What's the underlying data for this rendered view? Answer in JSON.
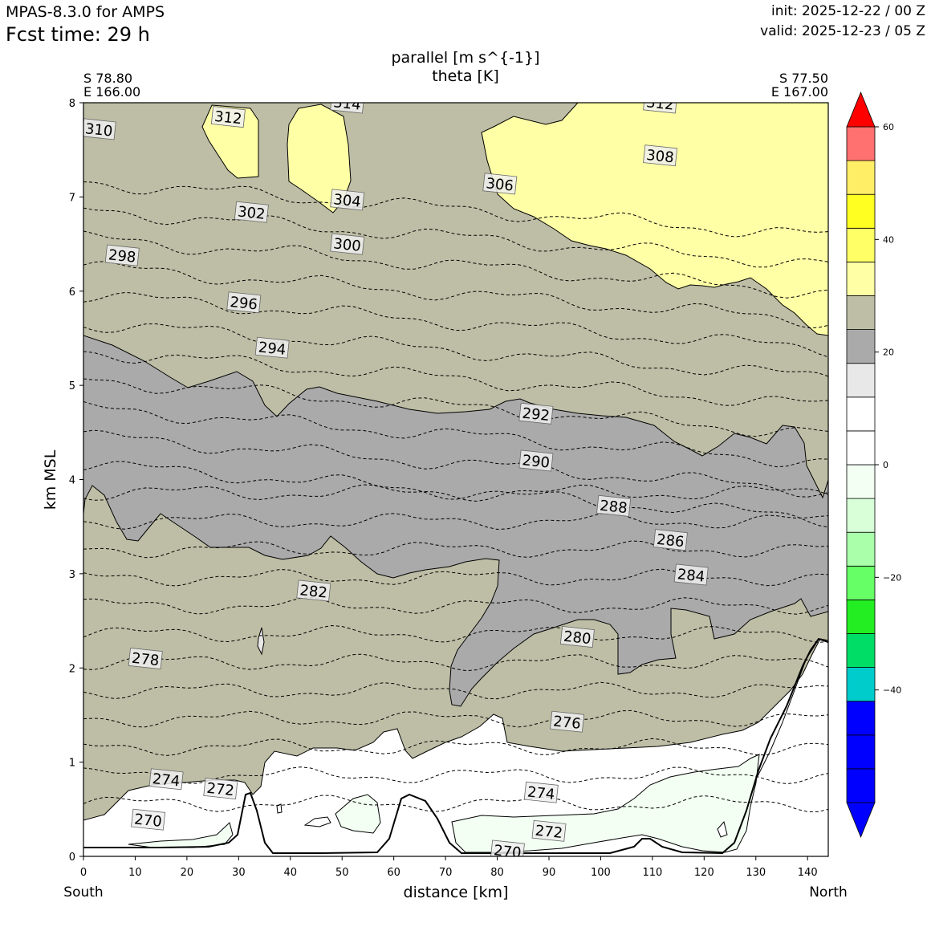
{
  "header": {
    "model": "MPAS-8.3.0 for AMPS",
    "fcst_time": "Fcst time:   29 h",
    "init": "init: 2025-12-22 / 00 Z",
    "valid": "valid: 2025-12-23 / 05 Z"
  },
  "chart_data": {
    "type": "heatmap",
    "title_line1": "parallel [m s^{-1}]",
    "title_line2": "theta [K]",
    "xlabel": "distance [km]",
    "ylabel": "km MSL",
    "xlim": [
      0,
      144
    ],
    "ylim": [
      0,
      8
    ],
    "x_ticks": [
      0,
      10,
      20,
      30,
      40,
      50,
      60,
      70,
      80,
      90,
      100,
      110,
      120,
      130,
      140
    ],
    "y_ticks": [
      0,
      1,
      2,
      3,
      4,
      5,
      6,
      7,
      8
    ],
    "endpoints": {
      "left": {
        "lat": "S 78.80",
        "lon": "E 166.00",
        "name": "South"
      },
      "right": {
        "lat": "S 77.50",
        "lon": "E 167.00",
        "name": "North"
      }
    },
    "colorbar": {
      "boundaries": [
        -60,
        -54,
        -48,
        -42,
        -36,
        -30,
        -24,
        -18,
        -12,
        -6,
        0,
        6,
        12,
        18,
        24,
        30,
        36,
        42,
        48,
        54,
        60
      ],
      "colors": [
        "#0000ff",
        "#0000ff",
        "#0000ff",
        "#00cccc",
        "#00dd66",
        "#22ee22",
        "#66ff66",
        "#aaffaa",
        "#d8ffd8",
        "#f2fff2",
        "#ffffff",
        "#ffffff",
        "#e8e8e8",
        "#aaaaaa",
        "#bebea6",
        "#ffffa6",
        "#ffff66",
        "#ffff22",
        "#ffee66",
        "#ff7070",
        "#ff0000"
      ],
      "over_color": "#ff0000",
      "under_color": "#0000ff",
      "tick_values": [
        60,
        40,
        20,
        0,
        -20,
        -40
      ],
      "tick_labels": [
        "60",
        "40",
        "20",
        "0",
        "−20",
        "−40"
      ]
    },
    "wind_regions": [
      {
        "name": "6-12",
        "color": "#ffffff"
      },
      {
        "name": "12-18",
        "color": "#e8e8e8"
      },
      {
        "name": "18-24",
        "color": "#aaaaaa"
      },
      {
        "name": "24-30",
        "color": "#bebea6"
      },
      {
        "name": "30-36",
        "color": "#ffffa6"
      },
      {
        "name": "-6-0",
        "color": "#f2fff2"
      }
    ],
    "theta_levels": [
      270,
      272,
      274,
      276,
      278,
      280,
      282,
      284,
      286,
      288,
      290,
      292,
      294,
      296,
      298,
      300,
      302,
      304,
      306,
      308,
      310,
      312,
      314
    ],
    "theta_labels": [
      {
        "text": "314",
        "x": 51,
        "y": 8.0
      },
      {
        "text": "312",
        "x": 28,
        "y": 7.85
      },
      {
        "text": "312",
        "x": 111.5,
        "y": 8.0
      },
      {
        "text": "310",
        "x": 3,
        "y": 7.72
      },
      {
        "text": "308",
        "x": 111.5,
        "y": 7.44
      },
      {
        "text": "306",
        "x": 80.5,
        "y": 7.14
      },
      {
        "text": "304",
        "x": 51,
        "y": 6.97
      },
      {
        "text": "302",
        "x": 32.5,
        "y": 6.84
      },
      {
        "text": "300",
        "x": 51,
        "y": 6.5
      },
      {
        "text": "298",
        "x": 7.5,
        "y": 6.38
      },
      {
        "text": "296",
        "x": 31,
        "y": 5.88
      },
      {
        "text": "294",
        "x": 36.5,
        "y": 5.4
      },
      {
        "text": "292",
        "x": 87.5,
        "y": 4.7
      },
      {
        "text": "290",
        "x": 87.5,
        "y": 4.2
      },
      {
        "text": "288",
        "x": 102.5,
        "y": 3.72
      },
      {
        "text": "286",
        "x": 113.5,
        "y": 3.36
      },
      {
        "text": "284",
        "x": 117.5,
        "y": 2.99
      },
      {
        "text": "282",
        "x": 44.5,
        "y": 2.82
      },
      {
        "text": "280",
        "x": 95.5,
        "y": 2.33
      },
      {
        "text": "278",
        "x": 12,
        "y": 2.1
      },
      {
        "text": "276",
        "x": 93.5,
        "y": 1.43
      },
      {
        "text": "274",
        "x": 16,
        "y": 0.82
      },
      {
        "text": "274",
        "x": 88.5,
        "y": 0.68
      },
      {
        "text": "272",
        "x": 26.5,
        "y": 0.72
      },
      {
        "text": "272",
        "x": 90,
        "y": 0.27
      },
      {
        "text": "270",
        "x": 12.5,
        "y": 0.39
      },
      {
        "text": "270",
        "x": 82,
        "y": 0.06
      }
    ]
  }
}
